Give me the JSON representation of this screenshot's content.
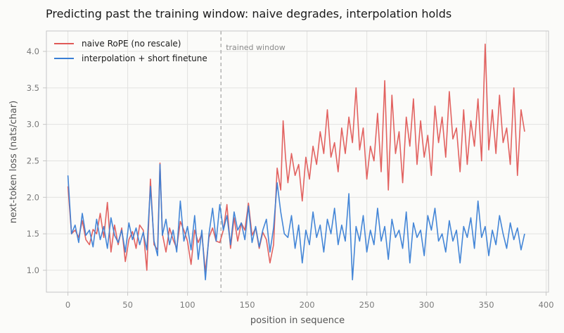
{
  "chart_data": {
    "type": "line",
    "title": "Predicting past the training window: naive degrades, interpolation holds",
    "xlabel": "position in sequence",
    "ylabel": "next-token loss (nats/char)",
    "xlim": [
      -18,
      402
    ],
    "ylim": [
      0.7,
      4.28
    ],
    "xticks": [
      0,
      50,
      100,
      150,
      200,
      250,
      300,
      350,
      400
    ],
    "yticks": [
      1.0,
      1.5,
      2.0,
      2.5,
      3.0,
      3.5,
      4.0
    ],
    "xtick_labels": [
      "0",
      "50",
      "100",
      "150",
      "200",
      "250",
      "300",
      "350",
      "400"
    ],
    "ytick_labels": [
      "1.0",
      "1.5",
      "2.0",
      "2.5",
      "3.0",
      "3.5",
      "4.0"
    ],
    "grid": true,
    "legend_position": "top-left",
    "annotations": [
      {
        "text": "trained window",
        "x": 128,
        "style": "dashed-vertical-line"
      }
    ],
    "series": [
      {
        "name": "naive RoPE (no rescale)",
        "color": "#e05a57",
        "x": [
          0,
          3,
          6,
          9,
          12,
          15,
          18,
          21,
          24,
          27,
          30,
          33,
          36,
          39,
          42,
          45,
          48,
          51,
          54,
          57,
          60,
          63,
          66,
          69,
          72,
          75,
          77,
          79,
          82,
          85,
          88,
          91,
          94,
          97,
          100,
          103,
          106,
          109,
          112,
          115,
          118,
          121,
          124,
          127,
          130,
          133,
          136,
          139,
          142,
          145,
          148,
          151,
          154,
          157,
          160,
          163,
          166,
          169,
          172,
          175,
          178,
          180,
          182,
          184,
          187,
          190,
          193,
          196,
          199,
          202,
          205,
          208,
          211,
          214,
          217,
          220,
          223,
          226,
          229,
          232,
          235,
          238,
          241,
          244,
          247,
          250,
          253,
          256,
          259,
          262,
          265,
          268,
          271,
          274,
          277,
          280,
          283,
          286,
          289,
          292,
          295,
          298,
          301,
          304,
          307,
          310,
          313,
          316,
          319,
          322,
          325,
          328,
          331,
          334,
          337,
          340,
          343,
          346,
          349,
          352,
          355,
          358,
          361,
          364,
          367,
          370,
          373,
          376,
          379,
          382
        ],
        "y": [
          2.15,
          1.5,
          1.55,
          1.45,
          1.68,
          1.42,
          1.35,
          1.56,
          1.5,
          1.78,
          1.45,
          1.93,
          1.25,
          1.62,
          1.35,
          1.58,
          1.12,
          1.42,
          1.53,
          1.3,
          1.62,
          1.55,
          1.0,
          2.25,
          1.35,
          1.28,
          2.47,
          1.5,
          1.25,
          1.58,
          1.42,
          1.3,
          1.67,
          1.55,
          1.4,
          1.08,
          1.55,
          1.38,
          1.5,
          0.98,
          1.45,
          1.58,
          1.4,
          1.38,
          1.55,
          1.9,
          1.3,
          1.72,
          1.4,
          1.65,
          1.55,
          1.92,
          1.48,
          1.58,
          1.3,
          1.52,
          1.42,
          1.1,
          1.35,
          2.4,
          2.1,
          3.05,
          2.55,
          2.2,
          2.6,
          2.3,
          2.45,
          1.95,
          2.55,
          2.25,
          2.7,
          2.45,
          2.9,
          2.6,
          3.2,
          2.55,
          2.75,
          2.35,
          2.95,
          2.6,
          3.1,
          2.75,
          3.5,
          2.65,
          2.95,
          2.25,
          2.7,
          2.5,
          3.15,
          2.35,
          3.6,
          2.1,
          3.4,
          2.6,
          2.9,
          2.2,
          3.1,
          2.7,
          3.35,
          2.45,
          3.05,
          2.55,
          2.85,
          2.3,
          3.25,
          2.75,
          3.1,
          2.55,
          3.45,
          2.8,
          2.95,
          2.35,
          3.2,
          2.45,
          3.05,
          2.7,
          3.35,
          2.5,
          4.1,
          2.65,
          3.2,
          2.6,
          3.4,
          2.75,
          2.95,
          2.45,
          3.5,
          2.3,
          3.2,
          2.9
        ]
      },
      {
        "name": "interpolation + short finetune",
        "color": "#3a7fd5",
        "x": [
          0,
          3,
          6,
          9,
          12,
          15,
          18,
          21,
          24,
          27,
          30,
          33,
          36,
          39,
          42,
          45,
          48,
          51,
          54,
          57,
          60,
          63,
          66,
          69,
          72,
          75,
          77,
          79,
          82,
          85,
          88,
          91,
          94,
          97,
          100,
          103,
          106,
          109,
          112,
          115,
          118,
          121,
          124,
          127,
          130,
          133,
          136,
          139,
          142,
          145,
          148,
          151,
          154,
          157,
          160,
          163,
          166,
          169,
          172,
          175,
          178,
          181,
          184,
          187,
          190,
          193,
          196,
          199,
          202,
          205,
          208,
          211,
          214,
          217,
          220,
          223,
          226,
          229,
          232,
          235,
          238,
          241,
          244,
          247,
          250,
          253,
          256,
          259,
          262,
          265,
          268,
          271,
          274,
          277,
          280,
          283,
          286,
          289,
          292,
          295,
          298,
          301,
          304,
          307,
          310,
          313,
          316,
          319,
          322,
          325,
          328,
          331,
          334,
          337,
          340,
          343,
          346,
          349,
          352,
          355,
          358,
          361,
          364,
          367,
          370,
          373,
          376,
          379,
          382
        ],
        "y": [
          2.3,
          1.5,
          1.62,
          1.38,
          1.78,
          1.48,
          1.55,
          1.32,
          1.7,
          1.42,
          1.6,
          1.3,
          1.72,
          1.48,
          1.38,
          1.55,
          1.25,
          1.65,
          1.42,
          1.58,
          1.35,
          1.52,
          1.28,
          2.15,
          1.4,
          1.2,
          2.45,
          1.48,
          1.7,
          1.35,
          1.55,
          1.25,
          1.95,
          1.4,
          1.6,
          1.28,
          1.75,
          1.15,
          1.55,
          0.87,
          1.5,
          1.85,
          1.4,
          1.9,
          1.55,
          1.75,
          1.35,
          1.8,
          1.55,
          1.65,
          1.42,
          1.88,
          1.38,
          1.6,
          1.32,
          1.55,
          1.7,
          1.25,
          1.58,
          2.2,
          1.8,
          1.5,
          1.45,
          1.75,
          1.3,
          1.62,
          1.1,
          1.55,
          1.35,
          1.8,
          1.45,
          1.62,
          1.25,
          1.7,
          1.5,
          1.85,
          1.35,
          1.62,
          1.4,
          2.05,
          0.87,
          1.6,
          1.4,
          1.75,
          1.25,
          1.55,
          1.35,
          1.85,
          1.4,
          1.6,
          1.15,
          1.7,
          1.45,
          1.55,
          1.3,
          1.8,
          1.1,
          1.65,
          1.45,
          1.55,
          1.2,
          1.75,
          1.55,
          1.85,
          1.4,
          1.5,
          1.25,
          1.68,
          1.4,
          1.55,
          1.1,
          1.6,
          1.45,
          1.72,
          1.3,
          1.95,
          1.45,
          1.6,
          1.2,
          1.55,
          1.35,
          1.75,
          1.5,
          1.3,
          1.65,
          1.42,
          1.58,
          1.28,
          1.5
        ]
      }
    ]
  }
}
